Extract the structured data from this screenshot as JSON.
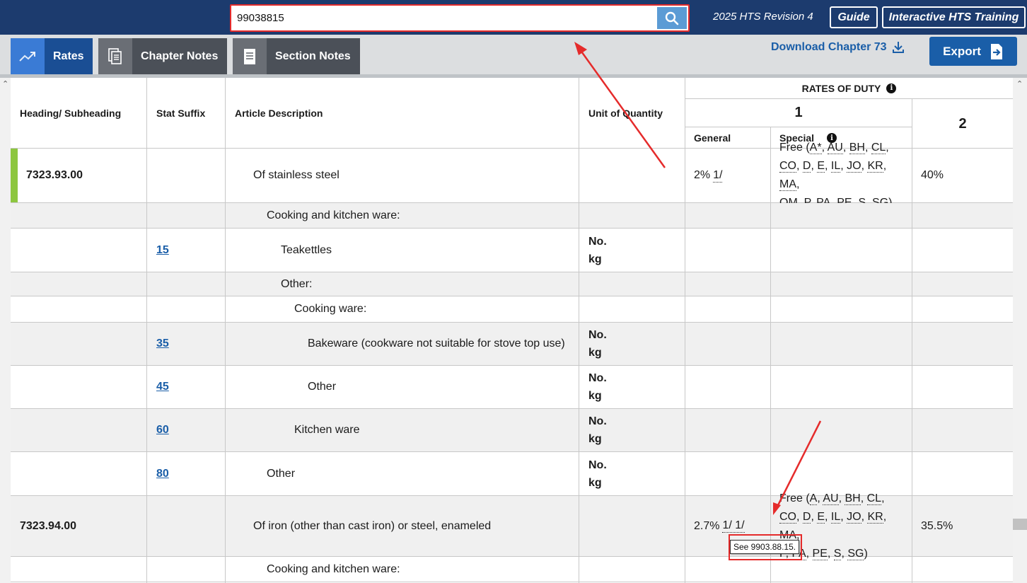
{
  "header": {
    "search_value": "99038815",
    "revision": "2025 HTS Revision 4",
    "guide_label": "Guide",
    "training_label": "Interactive HTS Training"
  },
  "toolbar": {
    "tabs": [
      {
        "label": "Rates",
        "icon": "trend-chart-icon"
      },
      {
        "label": "Chapter Notes",
        "icon": "documents-icon"
      },
      {
        "label": "Section Notes",
        "icon": "document-icon"
      }
    ],
    "download_label": "Download Chapter 73",
    "export_label": "Export"
  },
  "table": {
    "columns": {
      "heading": "Heading/ Subheading",
      "suffix": "Stat Suffix",
      "description": "Article Description",
      "unit": "Unit of Quantity",
      "rates_of_duty": "RATES OF DUTY",
      "col1": "1",
      "general": "General",
      "special": "Special",
      "col2": "2"
    },
    "rows": [
      {
        "heading": "7323.93.00",
        "suffix": "",
        "description": "Of stainless steel",
        "units": [],
        "general": "2%",
        "general_note": "1/",
        "special_prefix": "Free (",
        "special_codes": [
          "A*",
          "AU",
          "BH",
          "CL",
          "CO",
          "D",
          "E",
          "IL",
          "JO",
          "KR",
          "MA",
          "OM",
          "P",
          "PA",
          "PE",
          "S",
          "SG"
        ],
        "special_suffix": ")",
        "col2": "40%"
      },
      {
        "heading": "",
        "suffix": "",
        "description": "Cooking and kitchen ware:",
        "units": []
      },
      {
        "heading": "",
        "suffix": "15",
        "description": "Teakettles",
        "units": [
          "No.",
          "kg"
        ]
      },
      {
        "heading": "",
        "suffix": "",
        "description": "Other:",
        "units": []
      },
      {
        "heading": "",
        "suffix": "",
        "description": "Cooking ware:",
        "units": []
      },
      {
        "heading": "",
        "suffix": "35",
        "description": "Bakeware (cookware not suitable for stove top use)",
        "units": [
          "No.",
          "kg"
        ]
      },
      {
        "heading": "",
        "suffix": "45",
        "description": "Other",
        "units": [
          "No.",
          "kg"
        ]
      },
      {
        "heading": "",
        "suffix": "60",
        "description": "Kitchen ware",
        "units": [
          "No.",
          "kg"
        ]
      },
      {
        "heading": "",
        "suffix": "80",
        "description": "Other",
        "units": [
          "No.",
          "kg"
        ]
      },
      {
        "heading": "7323.94.00",
        "suffix": "",
        "description": "Of iron (other than cast iron) or steel, enameled",
        "units": [],
        "general": "2.7%",
        "general_note": "1/ 1/",
        "special_prefix": "Free (",
        "special_codes": [
          "A",
          "AU",
          "BH",
          "CL",
          "CO",
          "D",
          "E",
          "IL",
          "JO",
          "KR",
          "MA",
          "P",
          "PA",
          "PE",
          "S",
          "SG"
        ],
        "special_suffix": ")",
        "col2": "35.5%"
      },
      {
        "heading": "",
        "suffix": "",
        "description": "Cooking and kitchen ware:",
        "units": []
      }
    ]
  },
  "tooltip": "See 9903.88.15.",
  "colors": {
    "navy": "#1c3b6e",
    "accent_blue": "#1a5ea8",
    "annotation_red": "#e52b2b",
    "indent_marker": "#8dc63f"
  }
}
